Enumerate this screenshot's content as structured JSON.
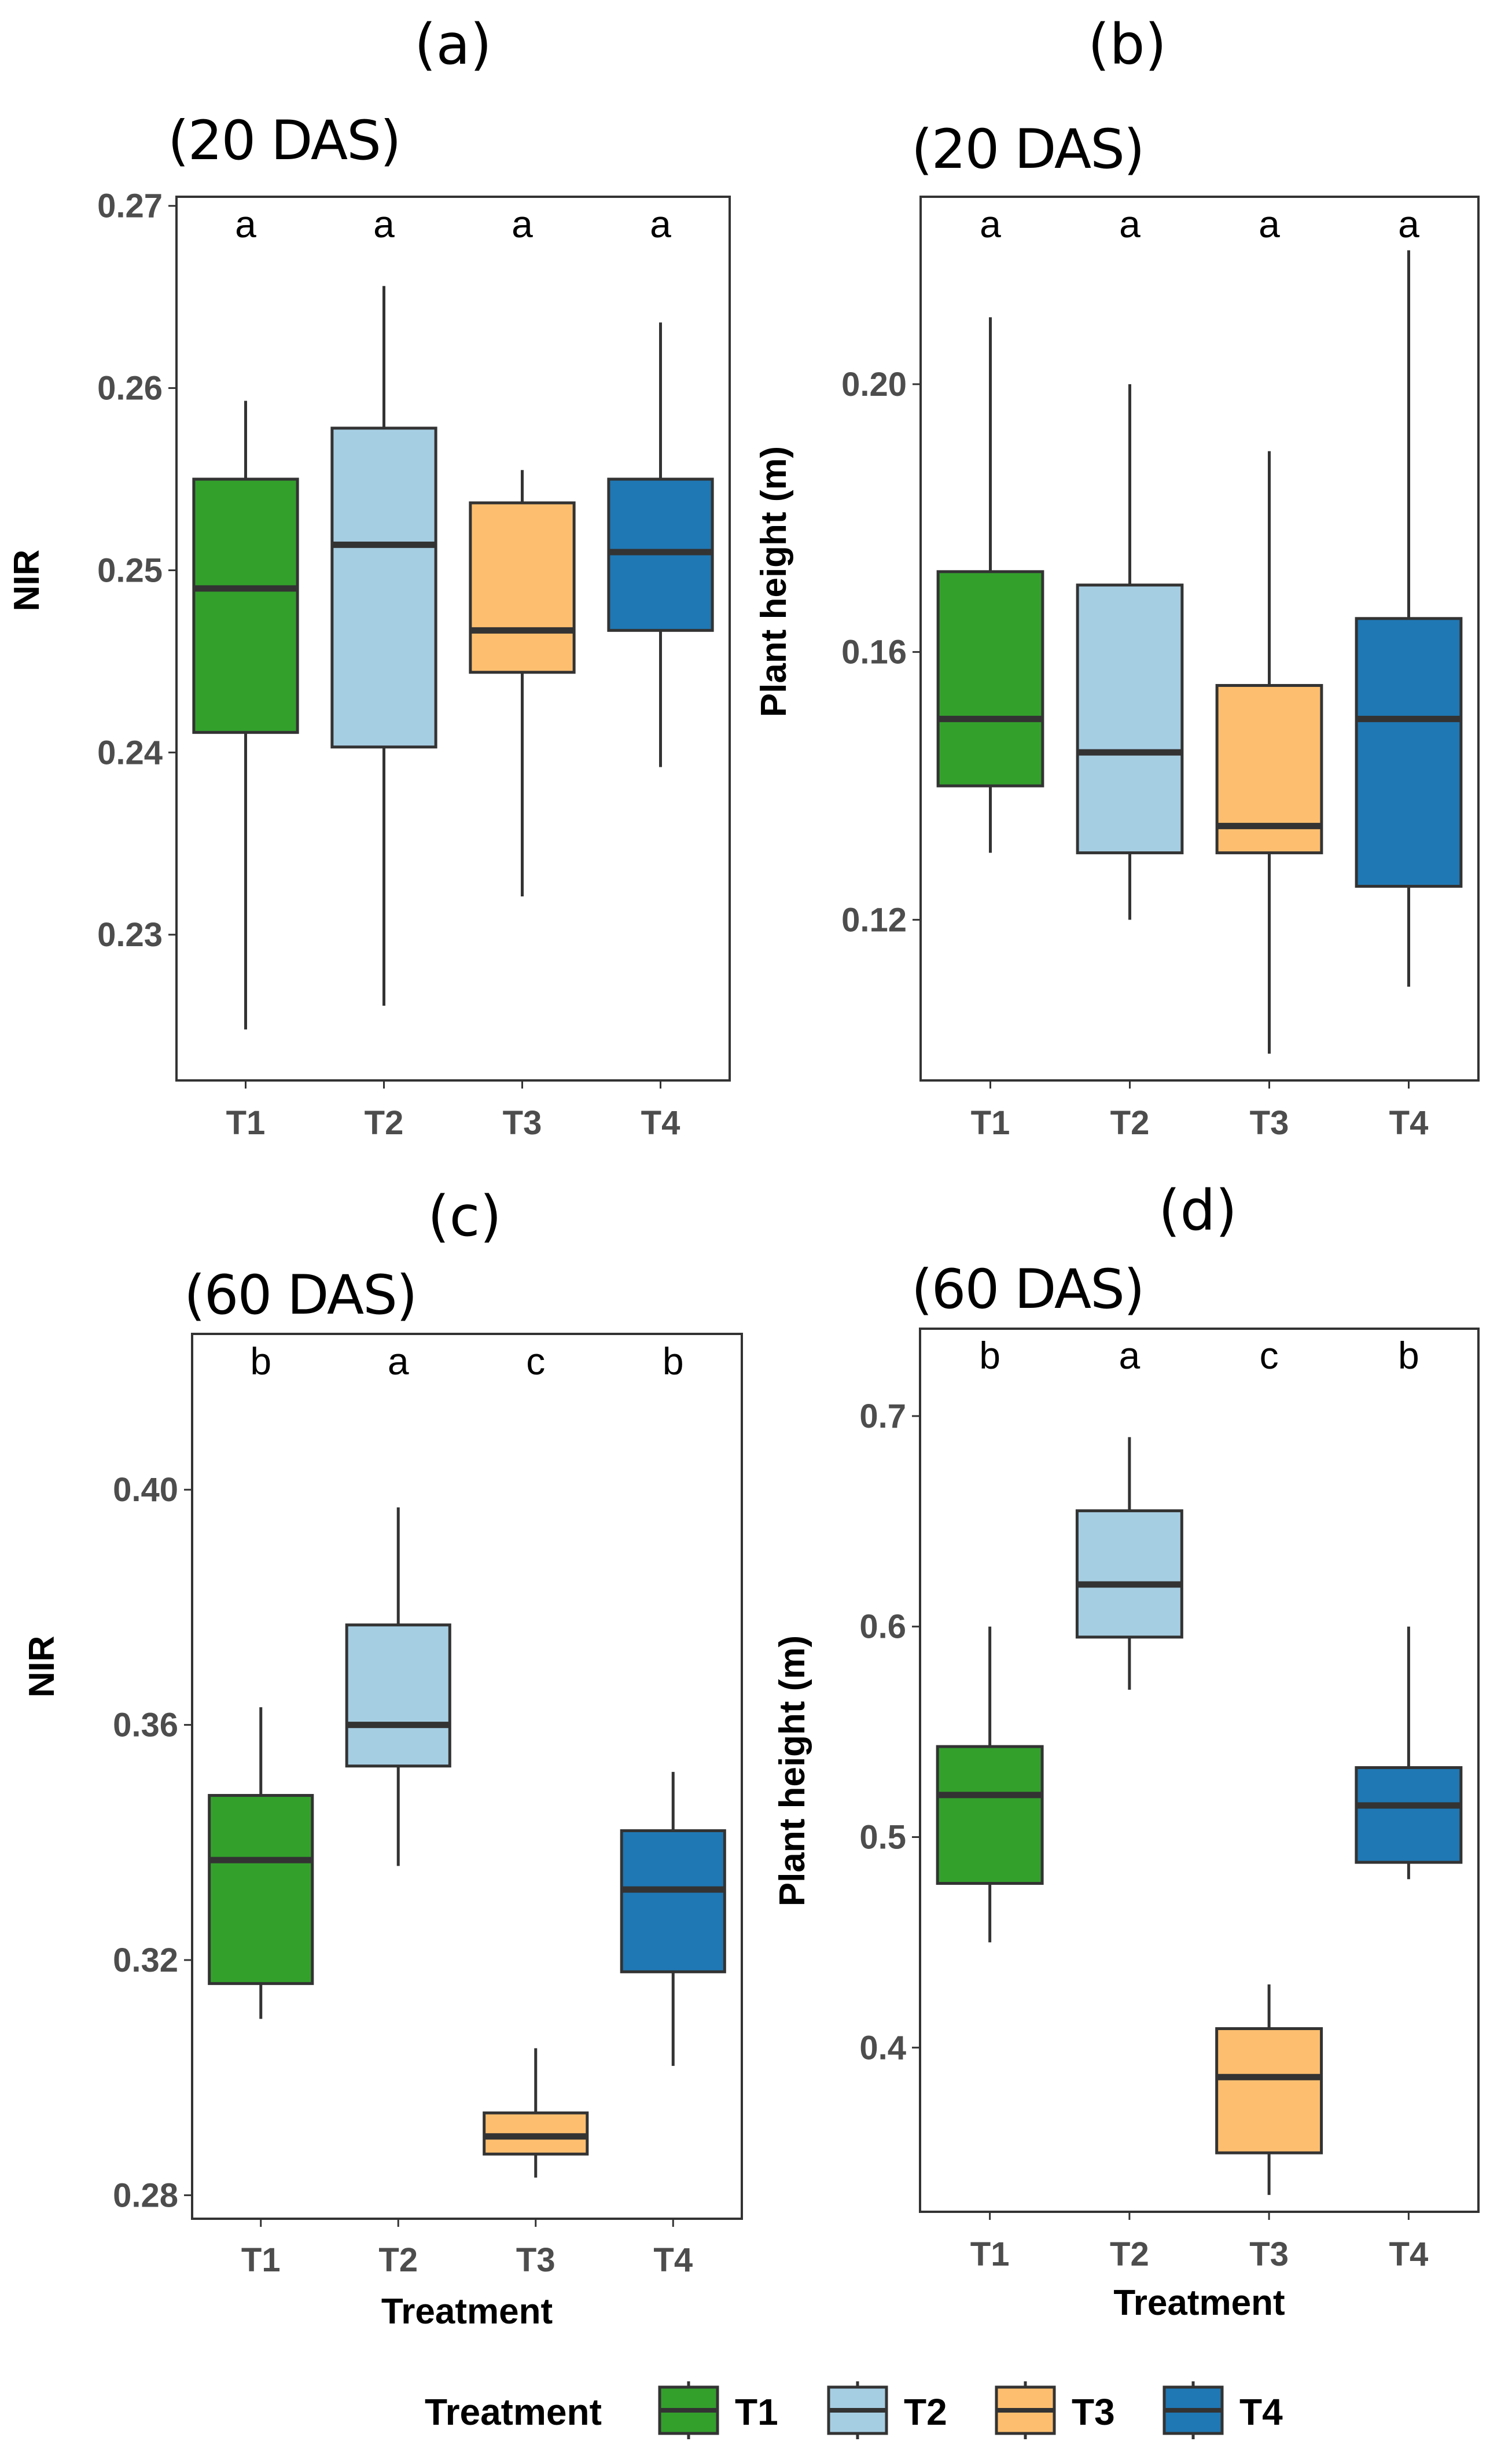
{
  "colors": {
    "T1": "#33a02c",
    "T2": "#a6cee3",
    "T3": "#fdbf6f",
    "T4": "#1f78b4"
  },
  "legend": {
    "title": "Treatment",
    "items": [
      "T1",
      "T2",
      "T3",
      "T4"
    ]
  },
  "chart_data": [
    {
      "type": "boxplot",
      "panel_label": "(a)",
      "title": "(20 DAS)",
      "xlabel": "",
      "ylabel": "NIR",
      "ylim": [
        0.222,
        0.2705
      ],
      "yticks": [
        0.23,
        0.24,
        0.25,
        0.26,
        0.27
      ],
      "ytick_labels": [
        "0.23",
        "0.24",
        "0.25",
        "0.26",
        "0.27"
      ],
      "categories": [
        "T1",
        "T2",
        "T3",
        "T4"
      ],
      "boxes": [
        {
          "min": 0.2248,
          "q1": 0.2411,
          "median": 0.249,
          "q3": 0.255,
          "max": 0.2593
        },
        {
          "min": 0.2261,
          "q1": 0.2403,
          "median": 0.2514,
          "q3": 0.2578,
          "max": 0.2656
        },
        {
          "min": 0.2321,
          "q1": 0.2444,
          "median": 0.2467,
          "q3": 0.2537,
          "max": 0.2555
        },
        {
          "min": 0.2392,
          "q1": 0.2467,
          "median": 0.251,
          "q3": 0.255,
          "max": 0.2636
        }
      ],
      "significance_letters": [
        "a",
        "a",
        "a",
        "a"
      ]
    },
    {
      "type": "boxplot",
      "panel_label": "(b)",
      "title": "(20 DAS)",
      "xlabel": "",
      "ylabel": "Plant height (m)",
      "ylim": [
        0.096,
        0.228
      ],
      "yticks": [
        0.12,
        0.16,
        0.2
      ],
      "ytick_labels": [
        "0.12",
        "0.16",
        "0.20"
      ],
      "categories": [
        "T1",
        "T2",
        "T3",
        "T4"
      ],
      "boxes": [
        {
          "min": 0.13,
          "q1": 0.14,
          "median": 0.15,
          "q3": 0.172,
          "max": 0.21
        },
        {
          "min": 0.12,
          "q1": 0.13,
          "median": 0.145,
          "q3": 0.17,
          "max": 0.2
        },
        {
          "min": 0.1,
          "q1": 0.13,
          "median": 0.134,
          "q3": 0.155,
          "max": 0.19
        },
        {
          "min": 0.11,
          "q1": 0.125,
          "median": 0.15,
          "q3": 0.165,
          "max": 0.22
        }
      ],
      "significance_letters": [
        "a",
        "a",
        "a",
        "a"
      ]
    },
    {
      "type": "boxplot",
      "panel_label": "(c)",
      "title": "(60 DAS)",
      "xlabel": "Treatment",
      "ylabel": "NIR",
      "ylim": [
        0.276,
        0.4265
      ],
      "yticks": [
        0.28,
        0.32,
        0.36,
        0.4
      ],
      "ytick_labels": [
        "0.28",
        "0.32",
        "0.36",
        "0.40"
      ],
      "categories": [
        "T1",
        "T2",
        "T3",
        "T4"
      ],
      "boxes": [
        {
          "min": 0.31,
          "q1": 0.316,
          "median": 0.337,
          "q3": 0.348,
          "max": 0.363
        },
        {
          "min": 0.336,
          "q1": 0.353,
          "median": 0.36,
          "q3": 0.377,
          "max": 0.397
        },
        {
          "min": 0.283,
          "q1": 0.287,
          "median": 0.29,
          "q3": 0.294,
          "max": 0.305
        },
        {
          "min": 0.302,
          "q1": 0.318,
          "median": 0.332,
          "q3": 0.342,
          "max": 0.352
        }
      ],
      "significance_letters": [
        "b",
        "a",
        "c",
        "b"
      ]
    },
    {
      "type": "boxplot",
      "panel_label": "(d)",
      "title": "(60 DAS)",
      "xlabel": "Treatment",
      "ylabel": "Plant height (m)",
      "ylim": [
        0.322,
        0.7415
      ],
      "yticks": [
        0.4,
        0.5,
        0.6,
        0.7
      ],
      "ytick_labels": [
        "0.4",
        "0.5",
        "0.6",
        "0.7"
      ],
      "categories": [
        "T1",
        "T2",
        "T3",
        "T4"
      ],
      "boxes": [
        {
          "min": 0.45,
          "q1": 0.478,
          "median": 0.52,
          "q3": 0.543,
          "max": 0.6
        },
        {
          "min": 0.57,
          "q1": 0.595,
          "median": 0.62,
          "q3": 0.655,
          "max": 0.69
        },
        {
          "min": 0.33,
          "q1": 0.35,
          "median": 0.386,
          "q3": 0.409,
          "max": 0.43
        },
        {
          "min": 0.48,
          "q1": 0.488,
          "median": 0.515,
          "q3": 0.533,
          "max": 0.6
        }
      ],
      "significance_letters": [
        "b",
        "a",
        "c",
        "b"
      ]
    }
  ]
}
